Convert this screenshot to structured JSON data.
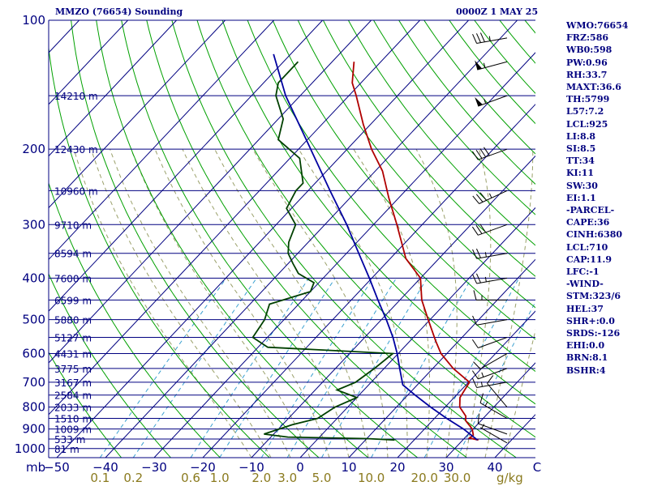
{
  "header": {
    "station": "MMZO (76654) Sounding",
    "time": "0000Z  1 MAY 25"
  },
  "indices": [
    "WMO:76654",
    "FRZ:586",
    "WB0:598",
    "PW:0.96",
    "RH:33.7",
    "MAXT:36.6",
    "TH:5799",
    "L57:7.2",
    "LCL:925",
    "LI:8.8",
    "SI:8.5",
    "TT:34",
    "KI:11",
    "SW:30",
    "EI:1.1",
    "-PARCEL-",
    "CAPE:36",
    "CINH:6380",
    "LCL:710",
    "CAP:11.9",
    "LFC:-1",
    "-WIND-",
    "STM:323/6",
    "HEL:37",
    "SHR+:0.0",
    "SRDS:-126",
    "EHI:0.0",
    "BRN:8.1",
    "BSHR:4"
  ],
  "colors": {
    "isobar": "#000080",
    "isotherm": "#000080",
    "dry_adiabat": "#00a000",
    "moist_adiabat": "#9aa06a",
    "mixing_ratio": "#3aa0d0",
    "temperature": "#b00000",
    "dewpoint": "#004000",
    "parcel": "#0000a0",
    "wind": "#000000"
  },
  "chart_data": {
    "type": "line",
    "diagram": "skew-T log-P",
    "pressure_axis": {
      "ticks": [
        100,
        200,
        300,
        400,
        500,
        600,
        700,
        800,
        900,
        1000
      ],
      "unit": "mb",
      "scale": "log",
      "range": [
        100,
        1050
      ]
    },
    "temperature_axis": {
      "ticks": [
        -50,
        -40,
        -30,
        -20,
        -10,
        0,
        10,
        20,
        30,
        40
      ],
      "tick_labels": [
        "−50",
        "−40",
        "−30",
        "−20",
        "−10",
        "0",
        "10",
        "20",
        "30",
        "40"
      ],
      "end_label": "C"
    },
    "mixing_ratio_labels": [
      "0.1",
      "0.2",
      "0.6",
      "1.0",
      "2.0",
      "3.0",
      "5.0",
      "10.0",
      "20.0",
      "30.0"
    ],
    "mixing_ratio_values": [
      0.1,
      0.2,
      0.6,
      1.0,
      2.0,
      3.0,
      5.0,
      10.0,
      20.0,
      30.0
    ],
    "mixing_ratio_unit": "g/kg",
    "pressure_unit_label": "mb",
    "heights": [
      {
        "p": 150,
        "label": "14210 m"
      },
      {
        "p": 200,
        "label": "12430 m"
      },
      {
        "p": 250,
        "label": "10960 m"
      },
      {
        "p": 300,
        "label": "9710 m"
      },
      {
        "p": 350,
        "label": "8594 m"
      },
      {
        "p": 400,
        "label": "7600 m"
      },
      {
        "p": 450,
        "label": "6599 m"
      },
      {
        "p": 500,
        "label": "5880 m"
      },
      {
        "p": 550,
        "label": "5127 m"
      },
      {
        "p": 600,
        "label": "4431 m"
      },
      {
        "p": 650,
        "label": "3775 m"
      },
      {
        "p": 700,
        "label": "3167 m"
      },
      {
        "p": 750,
        "label": "2584 m"
      },
      {
        "p": 800,
        "label": "2033 m"
      },
      {
        "p": 850,
        "label": "1510 m"
      },
      {
        "p": 900,
        "label": "1009 m"
      },
      {
        "p": 950,
        "label": "533 m"
      },
      {
        "p": 1000,
        "label": "81 m"
      }
    ],
    "series": [
      {
        "key": "temperature",
        "points": [
          {
            "p": 955,
            "t": 33.2
          },
          {
            "p": 945,
            "t": 31.0
          },
          {
            "p": 930,
            "t": 31.2
          },
          {
            "p": 900,
            "t": 29.8
          },
          {
            "p": 860,
            "t": 26.8
          },
          {
            "p": 840,
            "t": 26.0
          },
          {
            "p": 800,
            "t": 23.0
          },
          {
            "p": 760,
            "t": 21.2
          },
          {
            "p": 700,
            "t": 20.2
          },
          {
            "p": 650,
            "t": 14.2
          },
          {
            "p": 600,
            "t": 8.8
          },
          {
            "p": 560,
            "t": 5.2
          },
          {
            "p": 500,
            "t": -0.4
          },
          {
            "p": 450,
            "t": -5.5
          },
          {
            "p": 400,
            "t": -10.0
          },
          {
            "p": 360,
            "t": -16.8
          },
          {
            "p": 300,
            "t": -25.2
          },
          {
            "p": 260,
            "t": -32.0
          },
          {
            "p": 225,
            "t": -38.5
          },
          {
            "p": 200,
            "t": -45.0
          },
          {
            "p": 175,
            "t": -51.5
          },
          {
            "p": 150,
            "t": -58.5
          },
          {
            "p": 140,
            "t": -61.8
          },
          {
            "p": 125,
            "t": -65.5
          }
        ]
      },
      {
        "key": "dewpoint",
        "points": [
          {
            "p": 955,
            "t": 16.0
          },
          {
            "p": 948,
            "t": 10.0
          },
          {
            "p": 940,
            "t": -6.5
          },
          {
            "p": 925,
            "t": -12.0
          },
          {
            "p": 880,
            "t": -8.0
          },
          {
            "p": 850,
            "t": -4.0
          },
          {
            "p": 800,
            "t": -2.6
          },
          {
            "p": 760,
            "t": 0.0
          },
          {
            "p": 730,
            "t": -5.5
          },
          {
            "p": 700,
            "t": -3.2
          },
          {
            "p": 650,
            "t": -2.0
          },
          {
            "p": 600,
            "t": -1.1
          },
          {
            "p": 580,
            "t": -28.0
          },
          {
            "p": 550,
            "t": -33.0
          },
          {
            "p": 500,
            "t": -34.0
          },
          {
            "p": 460,
            "t": -36.0
          },
          {
            "p": 430,
            "t": -30.0
          },
          {
            "p": 410,
            "t": -31.0
          },
          {
            "p": 390,
            "t": -36.0
          },
          {
            "p": 370,
            "t": -39.0
          },
          {
            "p": 350,
            "t": -42.0
          },
          {
            "p": 330,
            "t": -44.0
          },
          {
            "p": 300,
            "t": -46.0
          },
          {
            "p": 275,
            "t": -51.0
          },
          {
            "p": 250,
            "t": -52.5
          },
          {
            "p": 240,
            "t": -52.5
          },
          {
            "p": 210,
            "t": -58.0
          },
          {
            "p": 190,
            "t": -66.0
          },
          {
            "p": 170,
            "t": -69.0
          },
          {
            "p": 150,
            "t": -75.0
          },
          {
            "p": 140,
            "t": -77.0
          },
          {
            "p": 125,
            "t": -77.0
          }
        ]
      },
      {
        "key": "parcel",
        "points": [
          {
            "p": 955,
            "t": 33.0
          },
          {
            "p": 900,
            "t": 28.0
          },
          {
            "p": 850,
            "t": 22.5
          },
          {
            "p": 800,
            "t": 17.0
          },
          {
            "p": 750,
            "t": 11.5
          },
          {
            "p": 710,
            "t": 7.0
          },
          {
            "p": 650,
            "t": 3.2
          },
          {
            "p": 600,
            "t": -0.2
          },
          {
            "p": 550,
            "t": -4.2
          },
          {
            "p": 500,
            "t": -9.0
          },
          {
            "p": 450,
            "t": -14.5
          },
          {
            "p": 400,
            "t": -20.5
          },
          {
            "p": 350,
            "t": -27.5
          },
          {
            "p": 300,
            "t": -35.5
          },
          {
            "p": 250,
            "t": -45.5
          },
          {
            "p": 200,
            "t": -57.5
          },
          {
            "p": 150,
            "t": -73.0
          },
          {
            "p": 120,
            "t": -83.5
          }
        ]
      }
    ],
    "wind_barbs": [
      {
        "p": 970,
        "dir": 300,
        "spd": 5
      },
      {
        "p": 925,
        "dir": 290,
        "spd": 10
      },
      {
        "p": 850,
        "dir": 300,
        "spd": 15
      },
      {
        "p": 800,
        "dir": 320,
        "spd": 10
      },
      {
        "p": 700,
        "dir": 260,
        "spd": 15
      },
      {
        "p": 650,
        "dir": 250,
        "spd": 15
      },
      {
        "p": 600,
        "dir": 240,
        "spd": 10
      },
      {
        "p": 550,
        "dir": 250,
        "spd": 10
      },
      {
        "p": 500,
        "dir": 260,
        "spd": 10
      },
      {
        "p": 450,
        "dir": 270,
        "spd": 15
      },
      {
        "p": 400,
        "dir": 260,
        "spd": 25
      },
      {
        "p": 350,
        "dir": 260,
        "spd": 25
      },
      {
        "p": 300,
        "dir": 250,
        "spd": 30
      },
      {
        "p": 250,
        "dir": 245,
        "spd": 35
      },
      {
        "p": 200,
        "dir": 250,
        "spd": 40
      },
      {
        "p": 150,
        "dir": 250,
        "spd": 55
      },
      {
        "p": 125,
        "dir": 255,
        "spd": 55
      },
      {
        "p": 110,
        "dir": 260,
        "spd": 35
      }
    ]
  }
}
